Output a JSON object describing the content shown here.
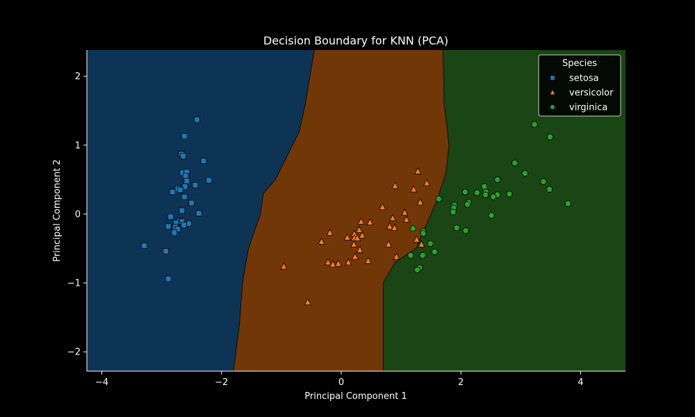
{
  "chart_data": {
    "type": "scatter",
    "title": "Decision Boundary for KNN (PCA)",
    "xlabel": "Principal Component 1",
    "ylabel": "Principal Component 2",
    "xlim": [
      -4.25,
      4.75
    ],
    "ylim": [
      -2.28,
      2.38
    ],
    "xticks": [
      -4,
      -2,
      0,
      2,
      4
    ],
    "yticks": [
      -2,
      -1,
      0,
      1,
      2
    ],
    "xtick_labels": [
      "−4",
      "−2",
      "0",
      "2",
      "4"
    ],
    "ytick_labels": [
      "−2",
      "−1",
      "0",
      "1",
      "2"
    ],
    "grid": false,
    "legend": {
      "title": "Species",
      "placement": "top-right"
    },
    "colors": {
      "background": "#000000",
      "setosa_region": "#0d3454",
      "versicolor_region": "#723706",
      "virginica_region": "#1a4514",
      "setosa": "#1f77b4",
      "versicolor": "#ff7f0e",
      "virginica": "#2ca02c"
    },
    "boundaries": {
      "setosa_versicolor": [
        [
          -0.45,
          2.38
        ],
        [
          -0.6,
          1.6
        ],
        [
          -0.7,
          1.2
        ],
        [
          -1.1,
          0.5
        ],
        [
          -1.3,
          0.3
        ],
        [
          -1.35,
          0.0
        ],
        [
          -1.55,
          -0.5
        ],
        [
          -1.65,
          -1.0
        ],
        [
          -1.7,
          -1.6
        ],
        [
          -1.8,
          -2.28
        ]
      ],
      "versicolor_virginica": [
        [
          1.7,
          2.38
        ],
        [
          1.72,
          1.6
        ],
        [
          1.8,
          1.0
        ],
        [
          1.75,
          0.6
        ],
        [
          1.6,
          0.2
        ],
        [
          1.4,
          -0.2
        ],
        [
          1.25,
          -0.5
        ],
        [
          0.9,
          -0.7
        ],
        [
          0.7,
          -1.0
        ],
        [
          0.7,
          -2.28
        ]
      ]
    },
    "series": [
      {
        "name": "setosa",
        "marker": "square",
        "points": [
          [
            -2.41,
            1.37
          ],
          [
            -2.62,
            1.13
          ],
          [
            -2.67,
            0.87
          ],
          [
            -2.64,
            0.84
          ],
          [
            -2.3,
            0.77
          ],
          [
            -2.65,
            0.6
          ],
          [
            -2.58,
            0.61
          ],
          [
            -2.6,
            0.55
          ],
          [
            -2.58,
            0.48
          ],
          [
            -2.21,
            0.49
          ],
          [
            -2.61,
            0.4
          ],
          [
            -2.44,
            0.42
          ],
          [
            -2.73,
            0.37
          ],
          [
            -2.69,
            0.35
          ],
          [
            -2.82,
            0.32
          ],
          [
            -2.62,
            0.25
          ],
          [
            -2.5,
            0.16
          ],
          [
            -2.66,
            0.05
          ],
          [
            -2.38,
            0.01
          ],
          [
            -2.85,
            -0.04
          ],
          [
            -2.71,
            -0.1
          ],
          [
            -2.66,
            -0.11
          ],
          [
            -2.76,
            -0.13
          ],
          [
            -2.55,
            -0.14
          ],
          [
            -2.63,
            -0.16
          ],
          [
            -2.89,
            -0.18
          ],
          [
            -2.77,
            -0.19
          ],
          [
            -2.73,
            -0.22
          ],
          [
            -2.79,
            -0.27
          ],
          [
            -3.29,
            -0.46
          ],
          [
            -2.93,
            -0.54
          ],
          [
            -2.89,
            -0.94
          ]
        ]
      },
      {
        "name": "versicolor",
        "marker": "triangle",
        "points": [
          [
            1.28,
            0.62
          ],
          [
            1.43,
            0.45
          ],
          [
            0.9,
            0.41
          ],
          [
            1.21,
            0.36
          ],
          [
            1.32,
            0.17
          ],
          [
            0.69,
            0.1
          ],
          [
            1.06,
            0.02
          ],
          [
            0.86,
            -0.06
          ],
          [
            1.09,
            -0.08
          ],
          [
            0.33,
            -0.11
          ],
          [
            0.48,
            -0.12
          ],
          [
            0.81,
            -0.18
          ],
          [
            0.89,
            -0.2
          ],
          [
            0.3,
            -0.23
          ],
          [
            -0.19,
            -0.27
          ],
          [
            0.22,
            -0.29
          ],
          [
            0.35,
            -0.31
          ],
          [
            0.1,
            -0.34
          ],
          [
            0.22,
            -0.35
          ],
          [
            0.27,
            -0.35
          ],
          [
            -0.33,
            -0.4
          ],
          [
            1.26,
            -0.37
          ],
          [
            0.21,
            -0.44
          ],
          [
            0.79,
            -0.44
          ],
          [
            1.34,
            -0.44
          ],
          [
            0.31,
            -0.52
          ],
          [
            0.23,
            -0.62
          ],
          [
            0.92,
            -0.62
          ],
          [
            0.45,
            -0.68
          ],
          [
            -0.22,
            -0.7
          ],
          [
            0.12,
            -0.7
          ],
          [
            -0.05,
            -0.72
          ],
          [
            -0.14,
            -0.73
          ],
          [
            -0.96,
            -0.76
          ],
          [
            -0.56,
            -1.28
          ]
        ]
      },
      {
        "name": "virginica",
        "marker": "circle",
        "points": [
          [
            3.23,
            1.3
          ],
          [
            3.49,
            1.12
          ],
          [
            2.9,
            0.74
          ],
          [
            3.07,
            0.59
          ],
          [
            2.61,
            0.5
          ],
          [
            3.38,
            0.47
          ],
          [
            2.39,
            0.4
          ],
          [
            3.48,
            0.36
          ],
          [
            2.07,
            0.32
          ],
          [
            2.27,
            0.31
          ],
          [
            2.42,
            0.32
          ],
          [
            2.41,
            0.28
          ],
          [
            2.61,
            0.28
          ],
          [
            2.81,
            0.29
          ],
          [
            2.54,
            0.25
          ],
          [
            1.63,
            0.22
          ],
          [
            2.13,
            0.17
          ],
          [
            2.11,
            0.14
          ],
          [
            3.79,
            0.15
          ],
          [
            1.89,
            0.13
          ],
          [
            1.88,
            0.09
          ],
          [
            1.87,
            0.03
          ],
          [
            2.51,
            -0.02
          ],
          [
            1.2,
            -0.21
          ],
          [
            1.93,
            -0.2
          ],
          [
            2.08,
            -0.24
          ],
          [
            1.37,
            -0.25
          ],
          [
            1.37,
            -0.28
          ],
          [
            1.49,
            -0.43
          ],
          [
            1.56,
            -0.55
          ],
          [
            1.16,
            -0.6
          ],
          [
            1.38,
            -0.59
          ],
          [
            1.36,
            -0.6
          ],
          [
            1.31,
            -0.78
          ],
          [
            1.27,
            -0.81
          ]
        ]
      }
    ]
  }
}
